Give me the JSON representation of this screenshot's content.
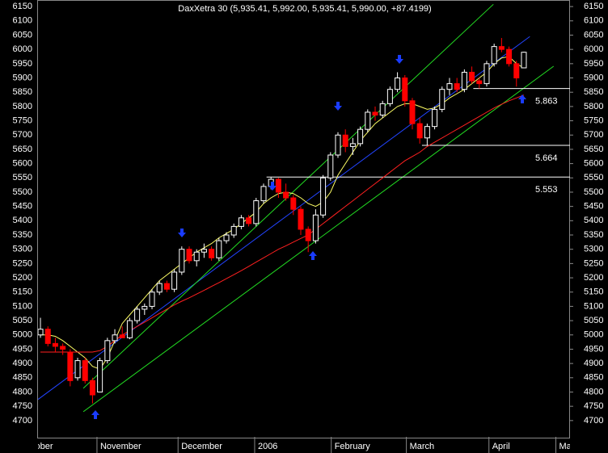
{
  "chart_data": {
    "type": "candlestick",
    "title": "DaxXetra 30 (5,935.41, 5,992.00, 5,935.41, 5,990.00, +87.4199)",
    "open": [
      5000,
      5020,
      4970,
      4960,
      4940,
      4850,
      4910,
      4840,
      4800,
      4910,
      4980,
      5000,
      4990,
      5050,
      5090,
      5100,
      5150,
      5180,
      5160,
      5220,
      5300,
      5260,
      5290,
      5300,
      5270,
      5330,
      5350,
      5380,
      5410,
      5390,
      5470,
      5520,
      5545,
      5500,
      5480,
      5440,
      5370,
      5330,
      5420,
      5550,
      5630,
      5700,
      5660,
      5670,
      5720,
      5780,
      5770,
      5810,
      5860,
      5900,
      5820,
      5740,
      5690,
      5730,
      5790,
      5860,
      5880,
      5860,
      5920,
      5890,
      5880,
      5950,
      6010,
      6000,
      5950,
      5935.41
    ],
    "high": [
      5060,
      5030,
      4990,
      4970,
      4950,
      4920,
      4920,
      4850,
      4920,
      4990,
      5020,
      5030,
      5060,
      5100,
      5110,
      5160,
      5190,
      5190,
      5230,
      5310,
      5310,
      5300,
      5320,
      5310,
      5340,
      5360,
      5390,
      5420,
      5420,
      5480,
      5530,
      5553,
      5550,
      5530,
      5490,
      5450,
      5380,
      5440,
      5560,
      5640,
      5710,
      5720,
      5690,
      5730,
      5790,
      5800,
      5820,
      5870,
      5920,
      5910,
      5830,
      5760,
      5740,
      5800,
      5870,
      5900,
      5900,
      5930,
      5940,
      5900,
      5960,
      6020,
      6040,
      6010,
      5960,
      5992
    ],
    "low": [
      4990,
      4960,
      4940,
      4930,
      4820,
      4840,
      4830,
      4760,
      4800,
      4900,
      4970,
      4990,
      4985,
      5040,
      5070,
      5090,
      5140,
      5150,
      5150,
      5210,
      5250,
      5240,
      5270,
      5260,
      5260,
      5320,
      5340,
      5370,
      5380,
      5380,
      5460,
      5510,
      5480,
      5470,
      5420,
      5350,
      5290,
      5320,
      5410,
      5540,
      5620,
      5640,
      5630,
      5660,
      5710,
      5750,
      5760,
      5800,
      5850,
      5800,
      5720,
      5670,
      5664,
      5720,
      5780,
      5840,
      5850,
      5850,
      5880,
      5863,
      5870,
      5940,
      5990,
      5940,
      5870,
      5935.41
    ],
    "close": [
      5020,
      4970,
      4960,
      4950,
      4840,
      4910,
      4840,
      4790,
      4910,
      4980,
      5000,
      4990,
      5050,
      5090,
      5100,
      5150,
      5180,
      5160,
      5220,
      5300,
      5260,
      5290,
      5300,
      5270,
      5330,
      5350,
      5380,
      5410,
      5390,
      5470,
      5520,
      5545,
      5500,
      5480,
      5440,
      5370,
      5330,
      5420,
      5550,
      5630,
      5700,
      5660,
      5670,
      5720,
      5780,
      5770,
      5810,
      5860,
      5900,
      5820,
      5740,
      5690,
      5730,
      5790,
      5860,
      5880,
      5860,
      5920,
      5890,
      5880,
      5950,
      6010,
      6000,
      5950,
      5900,
      5990
    ],
    "up_color": "#ffffff",
    "down_color": "#ff0000",
    "lines": [
      {
        "color": "#ffff66",
        "values": [
          5000,
          5000,
          4995,
          4980,
          4960,
          4940,
          4920,
          4890,
          4880,
          4920,
          4980,
          5040,
          5070,
          5100,
          5130,
          5160,
          5190,
          5210,
          5230,
          5250,
          5270,
          5290,
          5305,
          5320,
          5340,
          5355,
          5370,
          5390,
          5410,
          5430,
          5460,
          5480,
          5495,
          5500,
          5495,
          5480,
          5460,
          5450,
          5465,
          5500,
          5560,
          5600,
          5640,
          5680,
          5710,
          5740,
          5760,
          5780,
          5800,
          5810,
          5810,
          5800,
          5790,
          5795,
          5810,
          5830,
          5845,
          5860,
          5880,
          5900,
          5920,
          5950,
          5970,
          5975,
          5950,
          5935
        ]
      },
      {
        "color": "#ff2020",
        "values": [
          4940,
          4940,
          4940,
          4940,
          4940,
          4940,
          4940,
          4940,
          4945,
          4960,
          4980,
          5000,
          5015,
          5030,
          5045,
          5060,
          5075,
          5090,
          5105,
          5118,
          5130,
          5143,
          5156,
          5170,
          5183,
          5197,
          5211,
          5225,
          5240,
          5255,
          5270,
          5285,
          5300,
          5312,
          5325,
          5338,
          5350,
          5370,
          5390,
          5410,
          5430,
          5450,
          5470,
          5490,
          5510,
          5530,
          5550,
          5570,
          5590,
          5610,
          5625,
          5640,
          5660,
          5675,
          5690,
          5705,
          5720,
          5735,
          5750,
          5765,
          5780,
          5795,
          5808,
          5820,
          5830,
          5840
        ]
      }
    ],
    "trend_lines": [
      {
        "color": "#2244ff",
        "x": [
          -0.33,
          65.8
        ],
        "values": [
          4774,
          6045
        ]
      },
      {
        "color": "#22dd22",
        "x": [
          5.76,
          60.9
        ],
        "values": [
          4813,
          6158
        ]
      },
      {
        "color": "#22dd22",
        "x": [
          5.76,
          69.0
        ],
        "values": [
          4731,
          5941
        ]
      }
    ],
    "levels": [
      {
        "value": 5863,
        "label": "5.863",
        "start": 58.2
      },
      {
        "value": 5664,
        "label": "5.664",
        "start": 51.3
      },
      {
        "value": 5553,
        "label": "5.553",
        "start": 30.4
      }
    ],
    "xlim": [
      -0.33,
      71.2
    ],
    "xticks": [
      {
        "value": -3,
        "label": "October"
      },
      {
        "value": 7.6,
        "label": "November"
      },
      {
        "value": 18.5,
        "label": "December"
      },
      {
        "value": 28.8,
        "label": "2006"
      },
      {
        "value": 39.1,
        "label": "February"
      },
      {
        "value": 49.2,
        "label": "March"
      },
      {
        "value": 60.3,
        "label": "April"
      },
      {
        "value": 69.3,
        "label": "May"
      }
    ],
    "ylim": [
      4643,
      6173
    ],
    "yticks": [
      4700,
      4750,
      4800,
      4850,
      4900,
      4950,
      5000,
      5050,
      5100,
      5150,
      5200,
      5250,
      5300,
      5350,
      5400,
      5450,
      5500,
      5550,
      5600,
      5650,
      5700,
      5750,
      5800,
      5850,
      5900,
      5950,
      6000,
      6050,
      6100,
      6150
    ]
  }
}
